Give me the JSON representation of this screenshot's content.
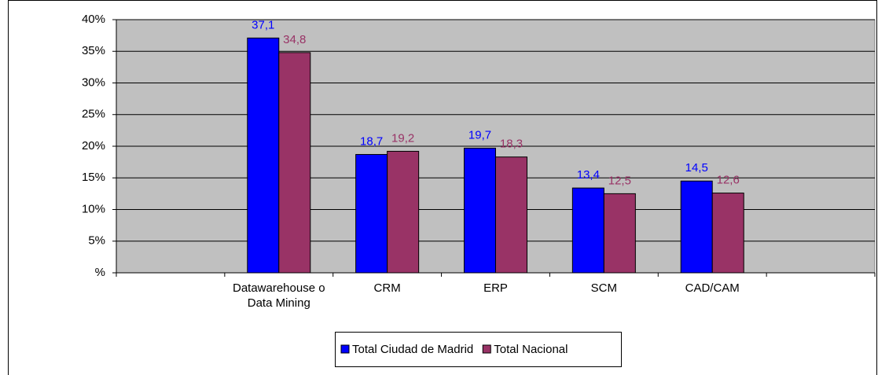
{
  "chart_data": {
    "type": "bar",
    "categories": [
      null,
      "Datawarehouse o Data Mining",
      "CRM",
      "ERP",
      "SCM",
      "CAD/CAM",
      null
    ],
    "series": [
      {
        "name": "Total Ciudad de Madrid",
        "color": "#0000ff",
        "values": [
          null,
          37.1,
          18.7,
          19.7,
          13.4,
          14.5,
          null
        ],
        "value_labels": [
          null,
          "37,1",
          "18,7",
          "19,7",
          "13,4",
          "14,5",
          null
        ]
      },
      {
        "name": "Total Nacional",
        "color": "#993366",
        "values": [
          null,
          34.8,
          19.2,
          18.3,
          12.5,
          12.6,
          null
        ],
        "value_labels": [
          null,
          "34,8",
          "19,2",
          "18,3",
          "12,5",
          "12,6",
          null
        ]
      }
    ],
    "ylim": [
      0,
      40
    ],
    "yticks": [
      {
        "value": 0,
        "label": "%"
      },
      {
        "value": 5,
        "label": "5%"
      },
      {
        "value": 10,
        "label": "10%"
      },
      {
        "value": 15,
        "label": "15%"
      },
      {
        "value": 20,
        "label": "20%"
      },
      {
        "value": 25,
        "label": "25%"
      },
      {
        "value": 30,
        "label": "30%"
      },
      {
        "value": 35,
        "label": "35%"
      },
      {
        "value": 40,
        "label": "40%"
      }
    ],
    "grid": true,
    "plot_background": "#c0c0c0",
    "legend": "bottom"
  }
}
